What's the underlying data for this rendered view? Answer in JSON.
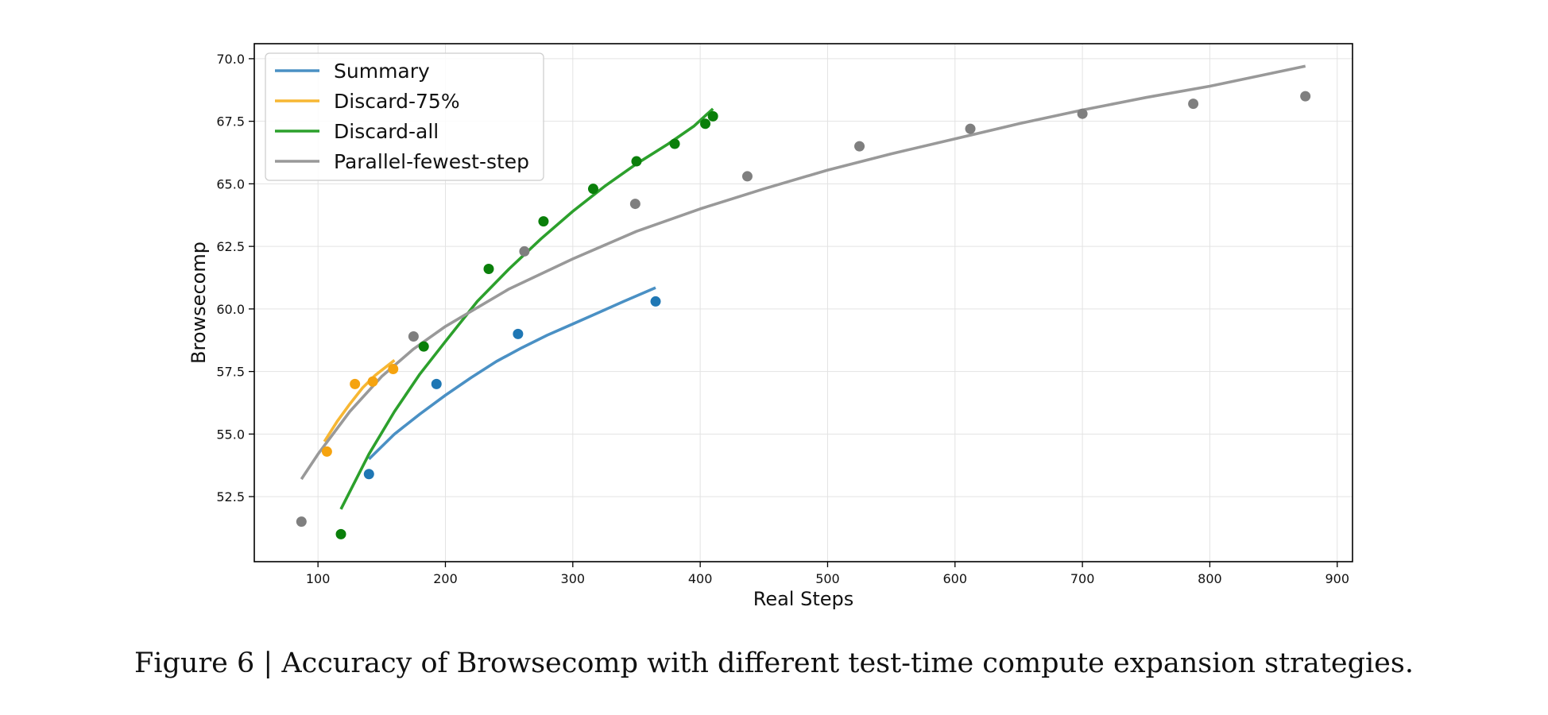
{
  "figure": {
    "caption": "Figure 6 | Accuracy of Browsecomp with different test-time compute expansion strategies."
  },
  "chart_data": {
    "type": "scatter",
    "title": "",
    "xlabel": "Real Steps",
    "ylabel": "Browsecomp",
    "xlim": [
      50,
      912
    ],
    "ylim": [
      49.9,
      70.6
    ],
    "xticks": [
      100,
      200,
      300,
      400,
      500,
      600,
      700,
      800,
      900
    ],
    "yticks": [
      52.5,
      55.0,
      57.5,
      60.0,
      62.5,
      65.0,
      67.5,
      70.0
    ],
    "xtick_labels": [
      "100",
      "200",
      "300",
      "400",
      "500",
      "600",
      "700",
      "800",
      "900"
    ],
    "ytick_labels": [
      "52.5",
      "55.0",
      "57.5",
      "60.0",
      "62.5",
      "65.0",
      "67.5",
      "70.0"
    ],
    "grid": true,
    "legend_position": "top-left",
    "series": [
      {
        "name": "Summary",
        "line_color": "#4a90c4",
        "marker_color": "#1f77b4",
        "points": [
          [
            140,
            53.4
          ],
          [
            193,
            57.0
          ],
          [
            257,
            59.0
          ],
          [
            365,
            60.3
          ]
        ],
        "fit_curve": [
          [
            140,
            54.0
          ],
          [
            160,
            55.0
          ],
          [
            180,
            55.8
          ],
          [
            200,
            56.55
          ],
          [
            220,
            57.25
          ],
          [
            240,
            57.9
          ],
          [
            260,
            58.45
          ],
          [
            280,
            58.95
          ],
          [
            300,
            59.4
          ],
          [
            320,
            59.85
          ],
          [
            340,
            60.3
          ],
          [
            365,
            60.85
          ]
        ]
      },
      {
        "name": "Discard-75%",
        "line_color": "#f7b733",
        "marker_color": "#f5a30f",
        "points": [
          [
            107,
            54.3
          ],
          [
            129,
            57.0
          ],
          [
            143,
            57.1
          ],
          [
            159,
            57.6
          ]
        ],
        "fit_curve": [
          [
            105,
            54.7
          ],
          [
            115,
            55.5
          ],
          [
            125,
            56.2
          ],
          [
            135,
            56.85
          ],
          [
            145,
            57.35
          ],
          [
            160,
            57.95
          ]
        ]
      },
      {
        "name": "Discard-all",
        "line_color": "#2ca02c",
        "marker_color": "#0a7f0a",
        "points": [
          [
            118,
            51.0
          ],
          [
            183,
            58.5
          ],
          [
            234,
            61.6
          ],
          [
            277,
            63.5
          ],
          [
            316,
            64.8
          ],
          [
            350,
            65.9
          ],
          [
            380,
            66.6
          ],
          [
            404,
            67.4
          ],
          [
            410,
            67.7
          ]
        ],
        "fit_curve": [
          [
            118,
            52.0
          ],
          [
            140,
            54.2
          ],
          [
            160,
            55.9
          ],
          [
            180,
            57.4
          ],
          [
            200,
            58.7
          ],
          [
            225,
            60.3
          ],
          [
            250,
            61.6
          ],
          [
            275,
            62.8
          ],
          [
            300,
            63.9
          ],
          [
            325,
            64.9
          ],
          [
            350,
            65.8
          ],
          [
            375,
            66.6
          ],
          [
            395,
            67.3
          ],
          [
            410,
            68.0
          ]
        ]
      },
      {
        "name": "Parallel-fewest-step",
        "line_color": "#999999",
        "marker_color": "#7f7f7f",
        "points": [
          [
            87,
            51.5
          ],
          [
            175,
            58.9
          ],
          [
            262,
            62.3
          ],
          [
            349,
            64.2
          ],
          [
            437,
            65.3
          ],
          [
            525,
            66.5
          ],
          [
            612,
            67.2
          ],
          [
            700,
            67.8
          ],
          [
            787,
            68.2
          ],
          [
            875,
            68.5
          ]
        ],
        "fit_curve": [
          [
            87,
            53.2
          ],
          [
            100,
            54.2
          ],
          [
            125,
            55.9
          ],
          [
            150,
            57.3
          ],
          [
            175,
            58.4
          ],
          [
            200,
            59.3
          ],
          [
            250,
            60.8
          ],
          [
            300,
            62.0
          ],
          [
            350,
            63.1
          ],
          [
            400,
            64.0
          ],
          [
            450,
            64.8
          ],
          [
            500,
            65.55
          ],
          [
            550,
            66.2
          ],
          [
            600,
            66.8
          ],
          [
            650,
            67.4
          ],
          [
            700,
            67.95
          ],
          [
            750,
            68.45
          ],
          [
            800,
            68.9
          ],
          [
            875,
            69.7
          ]
        ]
      }
    ]
  }
}
